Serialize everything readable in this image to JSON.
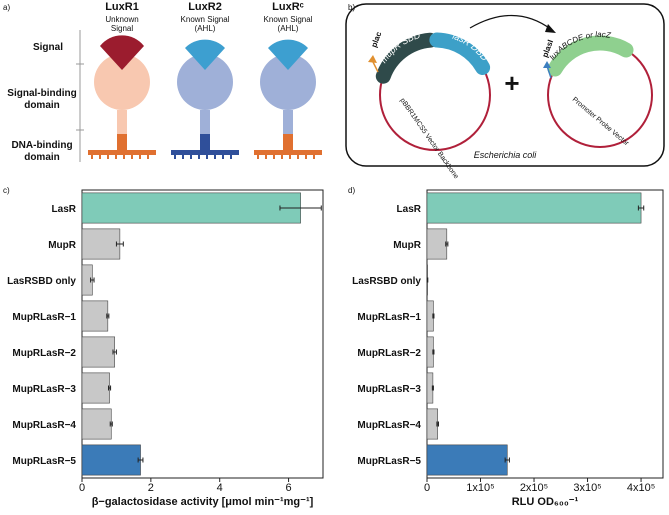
{
  "panel_labels": [
    "a)",
    "b)",
    "c)",
    "d)"
  ],
  "diagram_a": {
    "row_labels": [
      [
        "Signal"
      ],
      [
        "Signal-binding",
        "domain"
      ],
      [
        "DNA-binding",
        "domain"
      ]
    ],
    "proteins": [
      {
        "name": "LuxR1",
        "signal": [
          "Unknown",
          "Signal"
        ]
      },
      {
        "name": "LuxR2",
        "signal": [
          "Known Signal",
          "(AHL)"
        ]
      },
      {
        "name": "LuxRᶜ",
        "signal": [
          "Known Signal",
          "(AHL)"
        ]
      }
    ]
  },
  "diagram_b": {
    "promoter_1": "plac",
    "segment_1": "mupR SBD",
    "segment_2": "lasR DBD",
    "backbone_1": "pBBR1MCS5 Vector Backbone",
    "plus": "+",
    "promoter_2": "plasI",
    "reporter": "luxABCDE or lacZ",
    "backbone_2": "Promoter Probe Vector",
    "host": "Escherichia coli"
  },
  "chart_data": [
    {
      "type": "bar",
      "orientation": "horizontal",
      "categories": [
        "LasR",
        "MupR",
        "LasRSBD only",
        "MupRLasR−1",
        "MupRLasR−2",
        "MupRLasR−3",
        "MupRLasR−4",
        "MupRLasR−5"
      ],
      "values": [
        6.35,
        1.1,
        0.3,
        0.75,
        0.95,
        0.8,
        0.85,
        1.7
      ],
      "errors": [
        0.6,
        0.1,
        0.05,
        0.03,
        0.05,
        0.03,
        0.03,
        0.07
      ],
      "colors": [
        "#7fcbb8",
        "#c8c8c8",
        "#c8c8c8",
        "#c8c8c8",
        "#c8c8c8",
        "#c8c8c8",
        "#c8c8c8",
        "#3b7bb8"
      ],
      "xlim": [
        0,
        7
      ],
      "xticks": [
        0,
        2,
        4,
        6
      ],
      "xlabel": "β−galactosidase activity [μmol min⁻¹mg⁻¹]"
    },
    {
      "type": "bar",
      "orientation": "horizontal",
      "categories": [
        "LasR",
        "MupR",
        "LasRSBD only",
        "MupRLasR−1",
        "MupRLasR−2",
        "MupRLasR−3",
        "MupRLasR−4",
        "MupRLasR−5"
      ],
      "values": [
        400000,
        37000,
        1000,
        12000,
        12000,
        11000,
        20000,
        150000
      ],
      "errors": [
        5000,
        2000,
        500,
        1000,
        1000,
        1000,
        1500,
        4000
      ],
      "colors": [
        "#7fcbb8",
        "#c8c8c8",
        "#c8c8c8",
        "#c8c8c8",
        "#c8c8c8",
        "#c8c8c8",
        "#c8c8c8",
        "#3b7bb8"
      ],
      "xlim": [
        0,
        441000
      ],
      "xticks": [
        0,
        {
          "value": 100000,
          "label": "1x10⁵"
        },
        {
          "value": 200000,
          "label": "2x10⁵"
        },
        {
          "value": 300000,
          "label": "3x10⁵"
        },
        {
          "value": 400000,
          "label": "4x10⁵"
        }
      ],
      "xlabel": "RLU OD₆₀₀⁻¹"
    }
  ]
}
